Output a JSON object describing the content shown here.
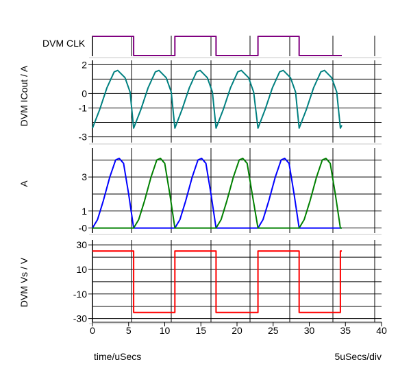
{
  "chart_data": {
    "type": "line",
    "x_axis": {
      "label": "time/uSecs",
      "scale_label": "5uSecs/div",
      "range": [
        0,
        40
      ],
      "ticks": [
        0,
        5,
        10,
        15,
        20,
        25,
        30,
        35,
        40
      ],
      "tick_labels": [
        "0",
        "5",
        "10",
        "15",
        "20",
        "25",
        "30",
        "35",
        "40"
      ]
    },
    "panels": [
      {
        "ylabel": "DVM CLK",
        "type": "digital",
        "series": [
          {
            "color": "#800080",
            "points": [
              [
                0,
                1
              ],
              [
                5.7,
                1
              ],
              [
                5.7,
                0
              ],
              [
                11.4,
                0
              ],
              [
                11.4,
                1
              ],
              [
                17.1,
                1
              ],
              [
                17.1,
                0
              ],
              [
                22.9,
                0
              ],
              [
                22.9,
                1
              ],
              [
                28.6,
                1
              ],
              [
                28.6,
                0
              ],
              [
                34.5,
                0
              ]
            ]
          }
        ]
      },
      {
        "ylabel": "DVM ICout / A",
        "ylim": [
          -3.4,
          2.3
        ],
        "yticks": [
          2,
          0,
          -1,
          -3
        ],
        "ytick_labels": [
          "2",
          "0",
          "-1",
          "-3"
        ],
        "gridlines": [
          2,
          1,
          0,
          -1,
          -2,
          -3
        ],
        "series": [
          {
            "color": "#008080",
            "points": [
              [
                0,
                -2.4
              ],
              [
                1,
                -1.1
              ],
              [
                2,
                0.4
              ],
              [
                3,
                1.5
              ],
              [
                3.5,
                1.6
              ],
              [
                4.5,
                1.1
              ],
              [
                5.2,
                0.1
              ],
              [
                5.7,
                -2.4
              ],
              [
                6.7,
                -1.1
              ],
              [
                7.7,
                0.4
              ],
              [
                8.7,
                1.5
              ],
              [
                9.2,
                1.6
              ],
              [
                10.2,
                1.1
              ],
              [
                10.9,
                0.1
              ],
              [
                11.4,
                -2.4
              ],
              [
                12.4,
                -1.1
              ],
              [
                13.4,
                0.4
              ],
              [
                14.4,
                1.5
              ],
              [
                14.9,
                1.6
              ],
              [
                15.9,
                1.1
              ],
              [
                16.6,
                0.1
              ],
              [
                17.1,
                -2.4
              ],
              [
                18.1,
                -1.1
              ],
              [
                19.1,
                0.4
              ],
              [
                20.1,
                1.5
              ],
              [
                20.6,
                1.6
              ],
              [
                21.6,
                1.1
              ],
              [
                22.3,
                0.1
              ],
              [
                22.9,
                -2.4
              ],
              [
                23.9,
                -1.1
              ],
              [
                24.9,
                0.4
              ],
              [
                25.9,
                1.5
              ],
              [
                26.4,
                1.6
              ],
              [
                27.4,
                1.1
              ],
              [
                28.1,
                0.1
              ],
              [
                28.6,
                -2.4
              ],
              [
                29.6,
                -1.1
              ],
              [
                30.6,
                0.4
              ],
              [
                31.6,
                1.5
              ],
              [
                32.1,
                1.6
              ],
              [
                33.1,
                1.1
              ],
              [
                33.8,
                0.1
              ],
              [
                34.3,
                -2.4
              ],
              [
                34.5,
                -2.2
              ]
            ]
          }
        ]
      },
      {
        "ylabel": "A",
        "ylim": [
          -0.3,
          4.7
        ],
        "yticks": [
          3,
          1,
          0
        ],
        "ytick_labels": [
          "3",
          "1",
          "-0"
        ],
        "gridlines": [
          4,
          3,
          2,
          1,
          0
        ],
        "series": [
          {
            "color": "#0000ff",
            "points": [
              [
                0,
                0
              ],
              [
                0.7,
                0.5
              ],
              [
                1.5,
                1.6
              ],
              [
                2.4,
                3.0
              ],
              [
                3.2,
                4.0
              ],
              [
                3.7,
                4.1
              ],
              [
                4.3,
                3.8
              ],
              [
                5.0,
                2.0
              ],
              [
                5.7,
                0
              ],
              [
                11.4,
                0
              ],
              [
                12.1,
                0.5
              ],
              [
                12.9,
                1.6
              ],
              [
                13.8,
                3.0
              ],
              [
                14.6,
                4.0
              ],
              [
                15.1,
                4.1
              ],
              [
                15.7,
                3.8
              ],
              [
                16.4,
                2.0
              ],
              [
                17.1,
                0
              ],
              [
                22.9,
                0
              ],
              [
                23.6,
                0.5
              ],
              [
                24.4,
                1.6
              ],
              [
                25.3,
                3.0
              ],
              [
                26.1,
                4.0
              ],
              [
                26.6,
                4.1
              ],
              [
                27.2,
                3.8
              ],
              [
                27.9,
                2.0
              ],
              [
                28.6,
                0
              ],
              [
                34.5,
                0
              ]
            ]
          },
          {
            "color": "#008000",
            "points": [
              [
                0,
                0
              ],
              [
                5.7,
                0
              ],
              [
                6.4,
                0.5
              ],
              [
                7.2,
                1.6
              ],
              [
                8.1,
                3.0
              ],
              [
                8.9,
                4.0
              ],
              [
                9.4,
                4.1
              ],
              [
                10.0,
                3.8
              ],
              [
                10.7,
                2.0
              ],
              [
                11.4,
                0
              ],
              [
                17.1,
                0
              ],
              [
                17.8,
                0.5
              ],
              [
                18.6,
                1.6
              ],
              [
                19.5,
                3.0
              ],
              [
                20.3,
                4.0
              ],
              [
                20.8,
                4.1
              ],
              [
                21.4,
                3.8
              ],
              [
                22.1,
                2.0
              ],
              [
                22.9,
                0
              ],
              [
                28.6,
                0
              ],
              [
                29.3,
                0.5
              ],
              [
                30.1,
                1.6
              ],
              [
                31.0,
                3.0
              ],
              [
                31.8,
                4.0
              ],
              [
                32.3,
                4.1
              ],
              [
                32.9,
                3.8
              ],
              [
                33.6,
                2.0
              ],
              [
                34.3,
                0
              ],
              [
                34.5,
                0
              ]
            ]
          }
        ]
      },
      {
        "ylabel": "DVM Vs / V",
        "ylim": [
          -33,
          34
        ],
        "yticks": [
          30,
          10,
          -10,
          -30
        ],
        "ytick_labels": [
          "30",
          "10",
          "-10",
          "-30"
        ],
        "gridlines": [
          30,
          20,
          10,
          0,
          -10,
          -20,
          -30
        ],
        "series": [
          {
            "color": "#ff0000",
            "points": [
              [
                0,
                25
              ],
              [
                5.7,
                25
              ],
              [
                5.7,
                -25
              ],
              [
                11.4,
                -25
              ],
              [
                11.4,
                25
              ],
              [
                17.1,
                25
              ],
              [
                17.1,
                -25
              ],
              [
                22.9,
                -25
              ],
              [
                22.9,
                25
              ],
              [
                28.6,
                25
              ],
              [
                28.6,
                -25
              ],
              [
                34.3,
                -25
              ],
              [
                34.3,
                25
              ],
              [
                34.5,
                25
              ]
            ]
          }
        ]
      }
    ]
  }
}
